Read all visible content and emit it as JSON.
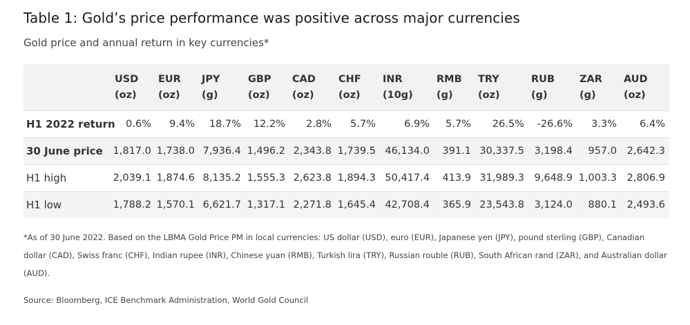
{
  "title": "Table 1: Gold’s price performance was positive across major currencies",
  "subtitle": "Gold price and annual return in key currencies*",
  "chart_data": {
    "type": "table",
    "title": "Table 1: Gold’s price performance was positive across major currencies",
    "subtitle": "Gold price and annual return in key currencies*",
    "columns": [
      {
        "name": "USD",
        "unit": "(oz)"
      },
      {
        "name": "EUR",
        "unit": "(oz)"
      },
      {
        "name": "JPY",
        "unit": "(g)"
      },
      {
        "name": "GBP",
        "unit": "(oz)"
      },
      {
        "name": "CAD",
        "unit": "(oz)"
      },
      {
        "name": "CHF",
        "unit": "(oz)"
      },
      {
        "name": "INR",
        "unit": "(10g)"
      },
      {
        "name": "RMB",
        "unit": "(g)"
      },
      {
        "name": "TRY",
        "unit": "(oz)"
      },
      {
        "name": "RUB",
        "unit": "(g)"
      },
      {
        "name": "ZAR",
        "unit": "(g)"
      },
      {
        "name": "AUD",
        "unit": "(oz)"
      }
    ],
    "rows": [
      {
        "label": "H1 2022 return",
        "bold": true,
        "shaded": false,
        "values": [
          "0.6%",
          "9.4%",
          "18.7%",
          "12.2%",
          "2.8%",
          "5.7%",
          "6.9%",
          "5.7%",
          "26.5%",
          "-26.6%",
          "3.3%",
          "6.4%"
        ]
      },
      {
        "label": "30 June price",
        "bold": true,
        "shaded": true,
        "values": [
          "1,817.0",
          "1,738.0",
          "7,936.4",
          "1,496.2",
          "2,343.8",
          "1,739.5",
          "46,134.0",
          "391.1",
          "30,337.5",
          "3,198.4",
          "957.0",
          "2,642.3"
        ]
      },
      {
        "label": "H1 high",
        "bold": false,
        "shaded": false,
        "values": [
          "2,039.1",
          "1,874.6",
          "8,135.2",
          "1,555.3",
          "2,623.8",
          "1,894.3",
          "50,417.4",
          "413.9",
          "31,989.3",
          "9,648.9",
          "1,003.3",
          "2,806.9"
        ]
      },
      {
        "label": "H1 low",
        "bold": false,
        "shaded": true,
        "values": [
          "1,788.2",
          "1,570.1",
          "6,621.7",
          "1,317.1",
          "2,271.8",
          "1,645.4",
          "42,708.4",
          "365.9",
          "23,543.8",
          "3,124.0",
          "880.1",
          "2,493.6"
        ]
      }
    ]
  },
  "footnote": "*As of 30 June 2022. Based on the LBMA Gold Price PM in local currencies: US dollar (USD), euro (EUR), Japanese yen (JPY), pound sterling (GBP), Canadian dollar (CAD), Swiss franc (CHF), Indian rupee (INR), Chinese yuan (RMB), Turkish lira (TRY), Russian rouble (RUB), South African rand (ZAR), and Australian dollar (AUD).",
  "source": "Source: Bloomberg, ICE Benchmark Administration, World Gold Council"
}
